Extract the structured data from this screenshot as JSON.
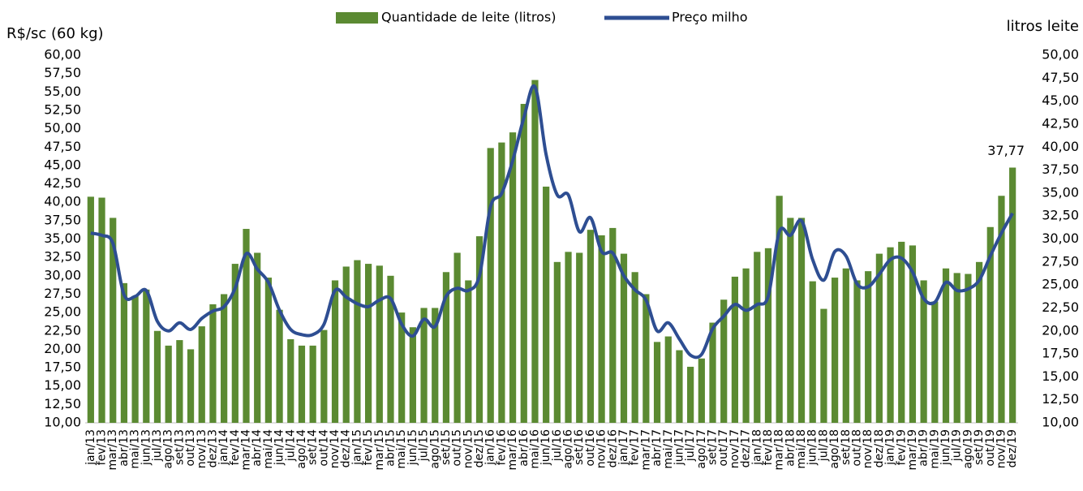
{
  "chart_data": {
    "type": "bar-line",
    "ylabel": "R$/sc (60 kg)",
    "y2label": "litros leite",
    "categories": [
      "jan/13",
      "fev/13",
      "mar/13",
      "abr/13",
      "mai/13",
      "jun/13",
      "jul/13",
      "ago/13",
      "set/13",
      "out/13",
      "nov/13",
      "dez/13",
      "jan/14",
      "fev/14",
      "mar/14",
      "abr/14",
      "mai/14",
      "jun/14",
      "jul/14",
      "ago/14",
      "set/14",
      "out/14",
      "nov/14",
      "dez/14",
      "jan/15",
      "fev/15",
      "mar/15",
      "abr/15",
      "mai/15",
      "jun/15",
      "jul/15",
      "ago/15",
      "set/15",
      "out/15",
      "nov/15",
      "dez/15",
      "jan/16",
      "fev/16",
      "mar/16",
      "abr/16",
      "mai/16",
      "jun/16",
      "jul/16",
      "ago/16",
      "set/16",
      "out/16",
      "nov/16",
      "dez/16",
      "jan/17",
      "fev/17",
      "mar/17",
      "abr/17",
      "mai/17",
      "jun/17",
      "jul/17",
      "ago/17",
      "set/17",
      "out/17",
      "nov/17",
      "dez/17",
      "jan/18",
      "fev/18",
      "mar/18",
      "abr/18",
      "mai/18",
      "jun/18",
      "jul/18",
      "ago/18",
      "set/18",
      "out/18",
      "nov/18",
      "dez/18",
      "jan/19",
      "fev/19",
      "mar/19",
      "abr/19",
      "mai/19",
      "jun/19",
      "jul/19",
      "ago/19",
      "set/19",
      "out/19",
      "nov/19",
      "dez/19"
    ],
    "series": [
      {
        "name": "Quantidade de leite (litros)",
        "color": "#5b8a32",
        "axis": "y2",
        "kind": "bar",
        "values": [
          34.6,
          34.5,
          32.3,
          25.2,
          23.8,
          24.5,
          20.0,
          18.4,
          19.0,
          18.0,
          20.5,
          22.9,
          24.0,
          27.3,
          31.1,
          28.5,
          25.8,
          22.3,
          19.1,
          18.4,
          18.4,
          20.1,
          25.5,
          27.0,
          27.7,
          27.3,
          27.1,
          26.0,
          22.0,
          20.4,
          22.5,
          22.5,
          26.4,
          28.5,
          25.5,
          30.3,
          39.9,
          40.5,
          41.6,
          44.7,
          47.3,
          35.7,
          27.5,
          28.6,
          28.5,
          31.0,
          30.4,
          31.2,
          28.4,
          26.4,
          24.0,
          18.8,
          19.4,
          17.9,
          16.1,
          17.0,
          20.9,
          23.4,
          25.9,
          26.8,
          28.6,
          29.0,
          34.7,
          32.3,
          32.3,
          25.4,
          22.4,
          25.8,
          26.8,
          25.5,
          26.5,
          28.4,
          29.1,
          29.7,
          29.3,
          25.5,
          23.2,
          26.8,
          26.3,
          26.2,
          27.5,
          31.3,
          34.7,
          37.77
        ],
        "value_labels": [
          null,
          null,
          null,
          null,
          null,
          null,
          null,
          null,
          null,
          null,
          null,
          null,
          null,
          null,
          null,
          null,
          null,
          null,
          null,
          null,
          null,
          null,
          null,
          null,
          null,
          null,
          null,
          null,
          null,
          null,
          null,
          null,
          null,
          null,
          null,
          null,
          null,
          null,
          null,
          null,
          null,
          null,
          null,
          null,
          null,
          null,
          null,
          null,
          null,
          null,
          null,
          null,
          null,
          null,
          null,
          null,
          null,
          null,
          null,
          null,
          null,
          null,
          null,
          null,
          null,
          null,
          null,
          null,
          null,
          null,
          null,
          null,
          null,
          null,
          null,
          null,
          null,
          null,
          null,
          null,
          null,
          null,
          null,
          "37,77"
        ]
      },
      {
        "name": "Preço milho",
        "color": "#2e4e92",
        "axis": "y",
        "kind": "line",
        "values": [
          35.8,
          35.5,
          34.4,
          27.4,
          27.2,
          28.0,
          23.8,
          22.5,
          23.6,
          22.7,
          24.2,
          25.2,
          25.8,
          28.3,
          33.0,
          30.9,
          29.1,
          25.3,
          22.7,
          22.0,
          22.0,
          23.4,
          28.0,
          27.1,
          26.2,
          25.8,
          26.7,
          26.9,
          23.4,
          21.8,
          24.1,
          23.1,
          27.2,
          28.3,
          28.0,
          30.0,
          39.4,
          41.2,
          45.7,
          51.5,
          55.7,
          46.5,
          41.0,
          41.0,
          36.0,
          37.9,
          33.3,
          33.1,
          30.0,
          28.1,
          26.7,
          22.5,
          23.6,
          21.4,
          19.2,
          19.3,
          22.8,
          24.5,
          26.1,
          25.3,
          26.1,
          27.2,
          36.0,
          35.5,
          37.5,
          32.2,
          29.4,
          33.3,
          32.7,
          28.9,
          28.5,
          30.2,
          32.2,
          32.4,
          30.5,
          26.9,
          26.4,
          29.1,
          28.0,
          28.2,
          29.4,
          32.7,
          35.8,
          38.5
        ]
      }
    ],
    "ylim": [
      10,
      60
    ],
    "yticks": [
      {
        "value": 10,
        "label": "10,00"
      },
      {
        "value": 12.5,
        "label": "12,50"
      },
      {
        "value": 15,
        "label": "15,00"
      },
      {
        "value": 17.5,
        "label": "17,50"
      },
      {
        "value": 20,
        "label": "20,00"
      },
      {
        "value": 22.5,
        "label": "22,50"
      },
      {
        "value": 25,
        "label": "25,00"
      },
      {
        "value": 27.5,
        "label": "27,50"
      },
      {
        "value": 30,
        "label": "30,00"
      },
      {
        "value": 32.5,
        "label": "32,50"
      },
      {
        "value": 35,
        "label": "35,00"
      },
      {
        "value": 37.5,
        "label": "37,50"
      },
      {
        "value": 40,
        "label": "40,00"
      },
      {
        "value": 42.5,
        "label": "42,50"
      },
      {
        "value": 45,
        "label": "45,00"
      },
      {
        "value": 47.5,
        "label": "47,50"
      },
      {
        "value": 50,
        "label": "50,00"
      },
      {
        "value": 52.5,
        "label": "52,50"
      },
      {
        "value": 55,
        "label": "55,00"
      },
      {
        "value": 57.5,
        "label": "57,50"
      },
      {
        "value": 60,
        "label": "60,00"
      }
    ],
    "y2lim": [
      10,
      50
    ],
    "y2ticks": [
      {
        "value": 10,
        "label": "10,00"
      },
      {
        "value": 12.5,
        "label": "12,50"
      },
      {
        "value": 15,
        "label": "15,00"
      },
      {
        "value": 17.5,
        "label": "17,50"
      },
      {
        "value": 20,
        "label": "20,00"
      },
      {
        "value": 22.5,
        "label": "22,50"
      },
      {
        "value": 25,
        "label": "25,00"
      },
      {
        "value": 27.5,
        "label": "27,50"
      },
      {
        "value": 30,
        "label": "30,00"
      },
      {
        "value": 32.5,
        "label": "32,50"
      },
      {
        "value": 35,
        "label": "35,00"
      },
      {
        "value": 37.5,
        "label": "37,50"
      },
      {
        "value": 40,
        "label": "40,00"
      },
      {
        "value": 42.5,
        "label": "42,50"
      },
      {
        "value": 45,
        "label": "45,00"
      },
      {
        "value": 47.5,
        "label": "47,50"
      },
      {
        "value": 50,
        "label": "50,00"
      }
    ],
    "legend": "top",
    "grid": false
  }
}
